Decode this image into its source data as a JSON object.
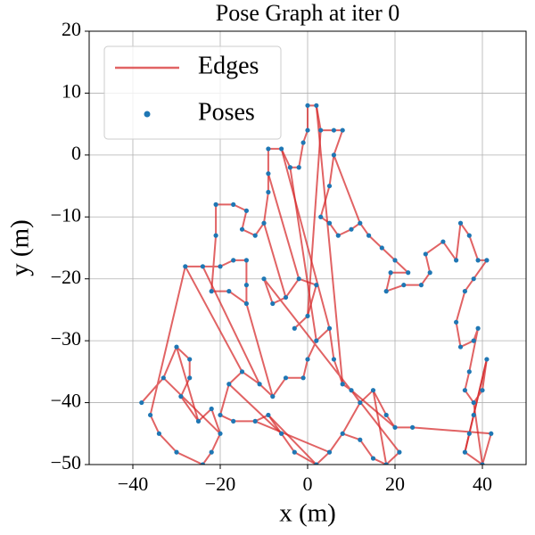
{
  "chart_data": {
    "type": "scatter",
    "title": "Pose Graph at iter 0",
    "x_label": "x (m)",
    "y_label": "y (m)",
    "xlim": [
      -50,
      50
    ],
    "ylim": [
      -50,
      20
    ],
    "xticks": [
      {
        "value": -40,
        "label": "−40"
      },
      {
        "value": -20,
        "label": "−20"
      },
      0,
      20,
      40
    ],
    "yticks": [
      {
        "value": -50,
        "label": "−50"
      },
      {
        "value": -40,
        "label": "−40"
      },
      {
        "value": -30,
        "label": "−30"
      },
      {
        "value": -20,
        "label": "−20"
      },
      {
        "value": -10,
        "label": "−10"
      },
      0,
      10,
      20
    ],
    "grid": true,
    "legend": "upper left",
    "series": [
      {
        "name": "Edges",
        "type": "line",
        "color": "#d62728",
        "x": [
          -38,
          -33,
          -30,
          -27,
          -27,
          -29,
          -25,
          -22,
          -20,
          -22,
          -24,
          -30,
          -34,
          -36,
          -28,
          -24,
          -20,
          -17,
          -14,
          -14,
          -14,
          -18,
          -22,
          -21,
          -21,
          -17,
          -14,
          -15,
          -12,
          -10,
          -9,
          -9,
          -9,
          -6,
          -4,
          -2,
          -1,
          0,
          0,
          2,
          3,
          6,
          8,
          6,
          5,
          3,
          5,
          7,
          10,
          12,
          14,
          17,
          20,
          23,
          19,
          18,
          22,
          26,
          28,
          27,
          31,
          34,
          35,
          37,
          39,
          41,
          38,
          36,
          34,
          35,
          38,
          39,
          37,
          36,
          38,
          40,
          41,
          38,
          37,
          36,
          40,
          42,
          24,
          20,
          18,
          15,
          12,
          10,
          8,
          6,
          5,
          2,
          0,
          -1,
          -5,
          -8,
          -11,
          -15,
          -18,
          -20,
          -17,
          -12,
          -9,
          -6,
          -3,
          2,
          5,
          8,
          12,
          15,
          18,
          21,
          -10,
          -8,
          -5,
          -2,
          2,
          0,
          -3,
          null,
          -6,
          5,
          null,
          -4,
          2,
          null,
          3,
          0,
          null,
          6,
          12,
          null,
          -28,
          -15,
          null,
          -24,
          -11,
          null,
          -14,
          -8,
          null,
          -9,
          -2,
          null,
          -10,
          -5,
          null,
          2,
          8,
          null,
          -30,
          -25,
          null,
          -33,
          -20,
          null,
          10,
          20,
          null,
          15,
          18,
          null,
          36,
          41,
          null,
          40,
          38,
          null,
          -18,
          -6,
          null,
          -12,
          5,
          null,
          12,
          8,
          null,
          -9,
          2
        ],
        "y": [
          -40,
          -36,
          -31,
          -33,
          -36,
          -39,
          -43,
          -41,
          -45,
          -48,
          -50,
          -48,
          -45,
          -42,
          -18,
          -18,
          -18,
          -17,
          -17,
          -21,
          -24,
          -22,
          -22,
          -13,
          -8,
          -8,
          -9,
          -12,
          -13,
          -11,
          -6,
          -3,
          1,
          1,
          -2,
          -2,
          2,
          4,
          8,
          8,
          4,
          4,
          4,
          0,
          -5,
          -10,
          -11,
          -13,
          -12,
          -11,
          -13,
          -15,
          -17,
          -19,
          -19,
          -22,
          -21,
          -21,
          -19,
          -16,
          -14,
          -17,
          -11,
          -13,
          -17,
          -17,
          -20,
          -22,
          -27,
          -31,
          -30,
          -28,
          -35,
          -38,
          -40,
          -38,
          -33,
          -42,
          -45,
          -48,
          -50,
          -45,
          -44,
          -44,
          -42,
          -38,
          -40,
          -38,
          -37,
          -33,
          -28,
          -30,
          -33,
          -36,
          -36,
          -39,
          -37,
          -35,
          -37,
          -42,
          -43,
          -43,
          -42,
          -45,
          -48,
          -50,
          -48,
          -45,
          -46,
          -49,
          -50,
          -48,
          -20,
          -24,
          -23,
          -20,
          -21,
          -26,
          -28,
          null,
          1,
          -28,
          null,
          -2,
          -30,
          null,
          4,
          -26,
          null,
          0,
          -11,
          null,
          -18,
          -35,
          null,
          -18,
          -37,
          null,
          -24,
          -39,
          null,
          -3,
          -20,
          null,
          -11,
          -23,
          null,
          8,
          -37,
          null,
          -31,
          -43,
          null,
          -36,
          -45,
          null,
          -38,
          -44,
          null,
          -38,
          -50,
          null,
          -48,
          -33,
          null,
          -50,
          -40,
          null,
          -37,
          -45,
          null,
          -43,
          -48,
          null,
          -40,
          -45,
          null,
          -42,
          -50
        ]
      },
      {
        "name": "Poses",
        "type": "scatter",
        "color": "#1f77b4",
        "x": [
          -38,
          -33,
          -30,
          -27,
          -27,
          -29,
          -25,
          -22,
          -20,
          -22,
          -24,
          -30,
          -34,
          -36,
          -28,
          -24,
          -20,
          -17,
          -14,
          -14,
          -14,
          -18,
          -22,
          -21,
          -21,
          -17,
          -14,
          -15,
          -12,
          -10,
          -9,
          -9,
          -9,
          -6,
          -4,
          -2,
          -1,
          0,
          0,
          2,
          3,
          6,
          8,
          6,
          5,
          3,
          5,
          7,
          10,
          12,
          14,
          17,
          20,
          23,
          19,
          18,
          22,
          26,
          28,
          27,
          31,
          34,
          35,
          37,
          39,
          41,
          38,
          36,
          34,
          35,
          38,
          39,
          37,
          36,
          38,
          40,
          41,
          38,
          37,
          36,
          40,
          42,
          24,
          20,
          18,
          15,
          12,
          10,
          8,
          6,
          5,
          2,
          0,
          -1,
          -5,
          -8,
          -11,
          -15,
          -18,
          -20,
          -17,
          -12,
          -9,
          -6,
          -3,
          2,
          5,
          8,
          12,
          15,
          18,
          21,
          -10,
          -8,
          -5,
          -2,
          2,
          0,
          -3
        ],
        "y": [
          -40,
          -36,
          -31,
          -33,
          -36,
          -39,
          -43,
          -41,
          -45,
          -48,
          -50,
          -48,
          -45,
          -42,
          -18,
          -18,
          -18,
          -17,
          -17,
          -21,
          -24,
          -22,
          -22,
          -13,
          -8,
          -8,
          -9,
          -12,
          -13,
          -11,
          -6,
          -3,
          1,
          1,
          -2,
          -2,
          2,
          4,
          8,
          8,
          4,
          4,
          4,
          0,
          -5,
          -10,
          -11,
          -13,
          -12,
          -11,
          -13,
          -15,
          -17,
          -19,
          -19,
          -22,
          -21,
          -21,
          -19,
          -16,
          -14,
          -17,
          -11,
          -13,
          -17,
          -17,
          -20,
          -22,
          -27,
          -31,
          -30,
          -28,
          -35,
          -38,
          -40,
          -38,
          -33,
          -42,
          -45,
          -48,
          -50,
          -45,
          -44,
          -44,
          -42,
          -38,
          -40,
          -38,
          -37,
          -33,
          -28,
          -30,
          -33,
          -36,
          -36,
          -39,
          -37,
          -35,
          -37,
          -42,
          -43,
          -43,
          -42,
          -45,
          -48,
          -50,
          -48,
          -45,
          -46,
          -49,
          -50,
          -48,
          -20,
          -24,
          -23,
          -20,
          -21,
          -26,
          -28
        ]
      }
    ]
  }
}
